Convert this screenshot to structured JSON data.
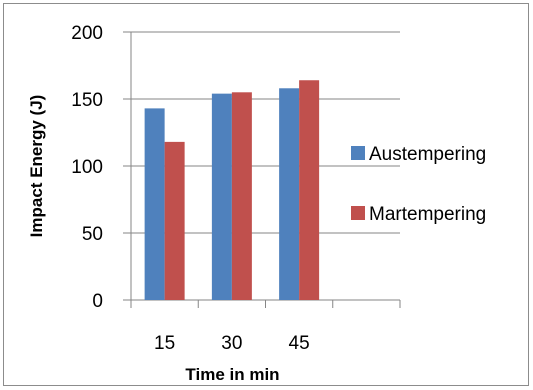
{
  "chart_data": {
    "type": "bar",
    "title": "",
    "xlabel": "Time in min",
    "ylabel": "Impact Energy (J)",
    "categories": [
      "15",
      "30",
      "45"
    ],
    "ylim": [
      0,
      200
    ],
    "yticks": [
      0,
      50,
      100,
      150,
      200
    ],
    "grid": true,
    "legend_position": "right",
    "series": [
      {
        "name": "Austempering",
        "color": "#4f81bd",
        "values": [
          143,
          154,
          158
        ]
      },
      {
        "name": "Martempering",
        "color": "#c0504d",
        "values": [
          118,
          155,
          164
        ]
      }
    ]
  }
}
